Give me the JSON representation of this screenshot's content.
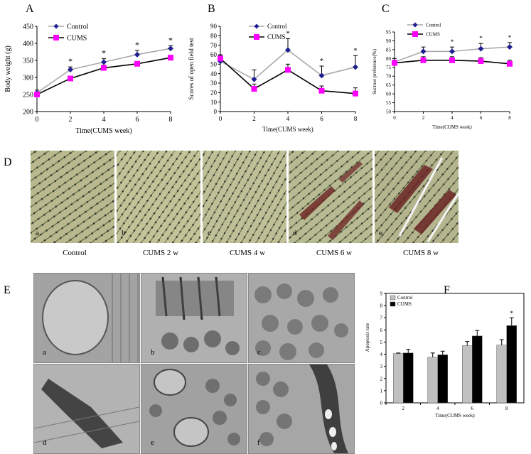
{
  "panel_letters": {
    "A": "A",
    "B": "B",
    "C": "C",
    "D": "D",
    "E": "E",
    "F": "F"
  },
  "chart_data": [
    {
      "panel": "A",
      "type": "line",
      "xlabel": "Time(CUMS week)",
      "ylabel": "Body weight (g)",
      "x": [
        0,
        2,
        4,
        6,
        8
      ],
      "xlim": [
        0,
        8
      ],
      "ylim": [
        200,
        450
      ],
      "yticks": [
        200,
        250,
        300,
        350,
        400,
        450
      ],
      "xticks": [
        0,
        2,
        4,
        6,
        8
      ],
      "legend_position": "top-left",
      "series": [
        {
          "name": "Control",
          "values": [
            255,
            323,
            345,
            367,
            385
          ],
          "errors": [
            8,
            8,
            10,
            12,
            8
          ],
          "color": "#1f1f8f",
          "line_color": "#aaaaaa",
          "marker": "diamond"
        },
        {
          "name": "CUMS",
          "values": [
            250,
            297,
            328,
            340,
            358
          ],
          "errors": [
            6,
            6,
            8,
            7,
            6
          ],
          "color": "#ff00ff",
          "line_color": "#000000",
          "marker": "square"
        }
      ],
      "annotations": [
        {
          "x": 2,
          "text": "*"
        },
        {
          "x": 4,
          "text": "*"
        },
        {
          "x": 6,
          "text": "*"
        },
        {
          "x": 8,
          "text": "*"
        }
      ]
    },
    {
      "panel": "B",
      "type": "line",
      "xlabel": "Time(CUMS week)",
      "ylabel": "Scores of open field test",
      "x": [
        0,
        2,
        4,
        6,
        8
      ],
      "xlim": [
        0,
        8
      ],
      "ylim": [
        0,
        90
      ],
      "yticks": [
        0,
        10,
        20,
        30,
        40,
        50,
        60,
        70,
        80,
        90
      ],
      "xticks": [
        0,
        2,
        4,
        6,
        8
      ],
      "legend_position": "top-right",
      "series": [
        {
          "name": "Control",
          "values": [
            53,
            34,
            65,
            38,
            47
          ],
          "errors": [
            6,
            10,
            12,
            10,
            12
          ],
          "color": "#1f1f8f",
          "line_color": "#aaaaaa",
          "marker": "diamond"
        },
        {
          "name": "CUMS",
          "values": [
            56,
            24,
            44,
            22,
            19
          ],
          "errors": [
            4,
            5,
            6,
            5,
            6
          ],
          "color": "#ff00ff",
          "line_color": "#000000",
          "marker": "square"
        }
      ],
      "annotations": [
        {
          "x": 4,
          "text": "*"
        },
        {
          "x": 6,
          "text": "*"
        },
        {
          "x": 8,
          "text": "*"
        }
      ]
    },
    {
      "panel": "C",
      "type": "line",
      "xlabel": "Time(CUMS week)",
      "ylabel": "Sucrose preference(%)",
      "x": [
        0,
        2,
        4,
        6,
        8
      ],
      "xlim": [
        0,
        8
      ],
      "ylim": [
        50,
        95
      ],
      "yticks": [
        50,
        55,
        60,
        65,
        70,
        75,
        80,
        85,
        90,
        95
      ],
      "xticks": [
        0,
        2,
        4,
        6,
        8
      ],
      "legend_position": "top-left",
      "series": [
        {
          "name": "Control",
          "values": [
            78,
            84,
            84,
            85.5,
            86.5
          ],
          "errors": [
            2,
            2.5,
            2.5,
            3,
            2.5
          ],
          "color": "#1f1f8f",
          "line_color": "#aaaaaa",
          "marker": "diamond"
        },
        {
          "name": "CUMS",
          "values": [
            77.5,
            79,
            79,
            78.5,
            77
          ],
          "errors": [
            1.5,
            2,
            2,
            2,
            2
          ],
          "color": "#ff00ff",
          "line_color": "#000000",
          "marker": "square"
        }
      ],
      "annotations": [
        {
          "x": 4,
          "text": "*"
        },
        {
          "x": 6,
          "text": "*"
        },
        {
          "x": 8,
          "text": "*"
        }
      ]
    },
    {
      "panel": "F",
      "type": "bar",
      "xlabel": "Time(CUMS week)",
      "ylabel": "Apoptosis rate",
      "categories": [
        "2",
        "4",
        "6",
        "8"
      ],
      "ylim": [
        0,
        9
      ],
      "yticks": [
        0,
        1,
        2,
        3,
        4,
        5,
        6,
        7,
        8,
        9
      ],
      "legend_position": "top-left",
      "series": [
        {
          "name": "Control",
          "values": [
            4.05,
            3.75,
            4.7,
            4.75
          ],
          "errors": [
            0.05,
            0.35,
            0.35,
            0.45
          ],
          "color": "#c0c0c0"
        },
        {
          "name": "CUMS",
          "values": [
            4.1,
            3.95,
            5.5,
            6.35
          ],
          "errors": [
            0.3,
            0.3,
            0.45,
            0.65
          ],
          "color": "#000000"
        }
      ],
      "annotations": [
        {
          "category": "8",
          "text": "*"
        }
      ]
    }
  ],
  "histology": {
    "labels": [
      "a",
      "b",
      "c",
      "d",
      "e"
    ],
    "captions": [
      "Control",
      "CUMS 2 w",
      "CUMS 4 w",
      "CUMS 6 w",
      "CUMS 8 w"
    ]
  },
  "micrographs": {
    "labels": [
      "a",
      "b",
      "c",
      "d",
      "e",
      "f"
    ]
  }
}
